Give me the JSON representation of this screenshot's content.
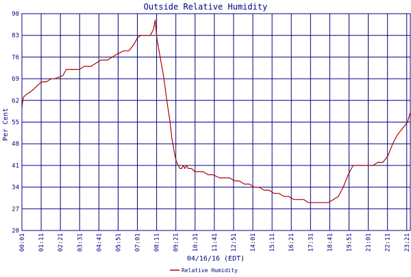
{
  "chart_data": {
    "type": "line",
    "title": "Outside Relative Humidity",
    "xlabel": "04/16/16 (EDT)",
    "ylabel": "Per Cent",
    "ylim": [
      20,
      90
    ],
    "yticks": [
      "20",
      "27",
      "34",
      "41",
      "48",
      "55",
      "62",
      "69",
      "76",
      "83",
      "90"
    ],
    "xticks": [
      "00:01",
      "01:11",
      "02:21",
      "03:31",
      "04:41",
      "05:51",
      "07:01",
      "08:11",
      "09:21",
      "10:31",
      "11:41",
      "12:51",
      "14:01",
      "15:11",
      "16:21",
      "17:31",
      "18:41",
      "19:51",
      "21:01",
      "22:11",
      "23:21"
    ],
    "xlim_hours": [
      0.0167,
      23.5667
    ],
    "grid": true,
    "legend_position": "bottom",
    "colors": {
      "background": "#ffffff",
      "axis": "#000080",
      "grid": "#000080",
      "line": "#aa0000"
    },
    "series": [
      {
        "name": "Relative Humidity",
        "x_hours": [
          0.02,
          0.1,
          0.3,
          0.6,
          0.8,
          1.0,
          1.2,
          1.5,
          1.8,
          2.0,
          2.5,
          2.7,
          3.0,
          3.5,
          3.8,
          4.2,
          4.5,
          4.8,
          5.2,
          5.5,
          5.8,
          6.2,
          6.5,
          6.8,
          7.0,
          7.2,
          7.5,
          7.8,
          8.0,
          8.1,
          8.2,
          8.3,
          8.4,
          8.5,
          8.6,
          8.8,
          9.0,
          9.1,
          9.2,
          9.3,
          9.4,
          9.5,
          9.6,
          9.7,
          9.8,
          9.9,
          10.0,
          10.1,
          10.3,
          10.5,
          10.7,
          11.0,
          11.3,
          11.6,
          12.0,
          12.3,
          12.6,
          12.9,
          13.2,
          13.5,
          13.8,
          14.1,
          14.4,
          14.7,
          15.0,
          15.3,
          15.6,
          15.9,
          16.2,
          16.5,
          16.8,
          17.1,
          17.4,
          17.7,
          18.0,
          18.3,
          18.6,
          18.9,
          19.2,
          19.5,
          19.8,
          20.1,
          20.4,
          20.7,
          21.0,
          21.3,
          21.6,
          21.9,
          22.2,
          22.5,
          22.8,
          23.1,
          23.4,
          23.56
        ],
        "values": [
          60,
          63,
          64,
          65,
          66,
          67,
          68,
          68,
          69,
          69,
          70,
          72,
          72,
          72,
          73,
          73,
          74,
          75,
          75,
          76,
          77,
          78,
          78,
          80,
          82,
          83,
          83,
          83,
          85,
          88,
          82,
          79,
          76,
          73,
          70,
          62,
          55,
          50,
          47,
          44,
          42,
          41,
          40,
          40,
          41,
          40,
          41,
          40,
          40,
          39,
          39,
          39,
          38,
          38,
          37,
          37,
          37,
          36,
          36,
          35,
          35,
          34,
          34,
          33,
          33,
          32,
          32,
          31,
          31,
          30,
          30,
          30,
          29,
          29,
          29,
          29,
          29,
          30,
          31,
          34,
          38,
          41,
          41,
          41,
          41,
          41,
          42,
          42,
          44,
          48,
          51,
          53,
          55,
          58
        ]
      }
    ]
  }
}
